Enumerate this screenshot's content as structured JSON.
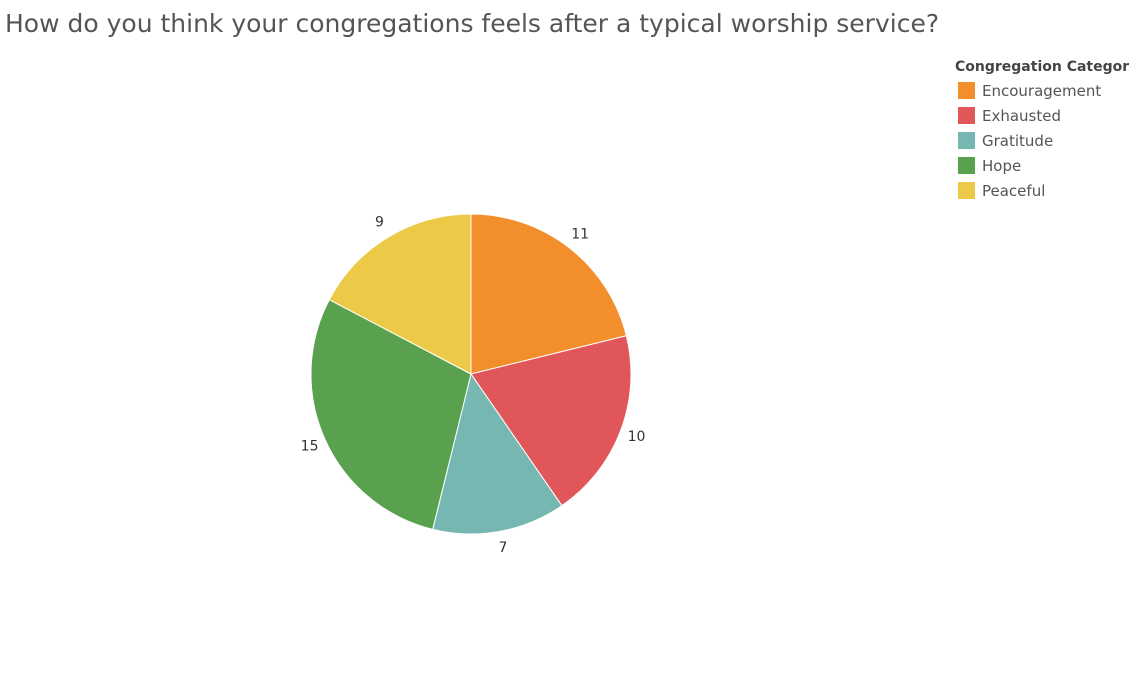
{
  "chart_data": {
    "type": "pie",
    "title": "How do you think your congregations feels after a typical worship service?",
    "legend_title": "Congregation Category",
    "legend_position": "top-right",
    "slices": [
      {
        "label": "Encouragement",
        "value": 11,
        "color": "#f28e2b"
      },
      {
        "label": "Exhausted",
        "value": 10,
        "color": "#e15759"
      },
      {
        "label": "Gratitude",
        "value": 7,
        "color": "#76b7b2"
      },
      {
        "label": "Hope",
        "value": 15,
        "color": "#59a14f"
      },
      {
        "label": "Peaceful",
        "value": 9,
        "color": "#edc948"
      }
    ]
  }
}
